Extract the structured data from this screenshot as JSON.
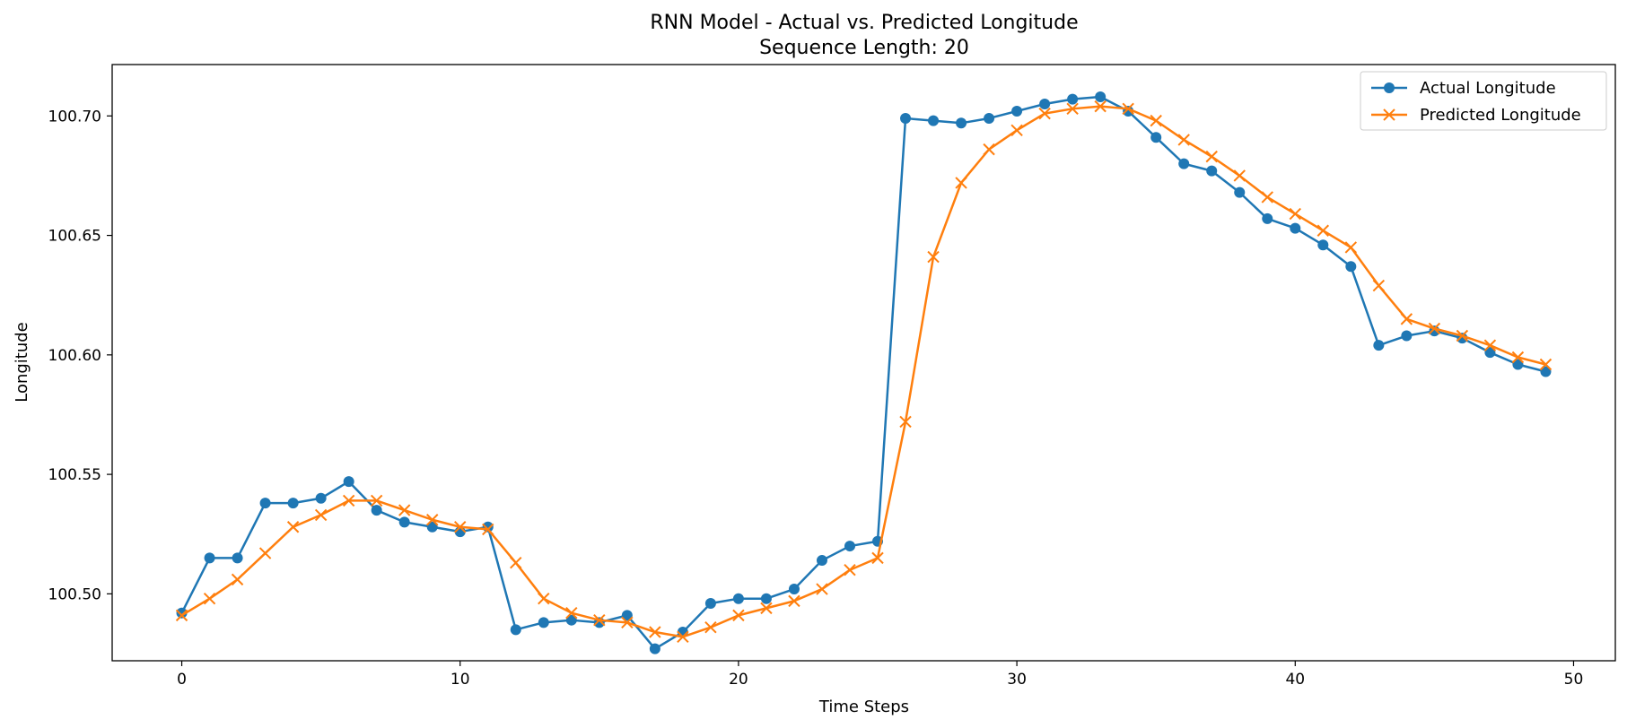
{
  "chart_data": {
    "type": "line",
    "title": "RNN Model - Actual vs. Predicted Longitude",
    "subtitle": "Sequence Length: 20",
    "xlabel": "Time Steps",
    "ylabel": "Longitude",
    "xlim": [
      -2.5,
      51.5
    ],
    "ylim": [
      100.472,
      100.7215
    ],
    "xticks": [
      0,
      10,
      20,
      30,
      40,
      50
    ],
    "yticks": [
      100.5,
      100.55,
      100.6,
      100.65,
      100.7
    ],
    "ytick_labels": [
      "100.50",
      "100.55",
      "100.60",
      "100.65",
      "100.70"
    ],
    "grid": false,
    "legend_position": "top-right",
    "series": [
      {
        "name": "Actual Longitude",
        "color": "#1f77b4",
        "marker": "circle",
        "values": [
          100.492,
          100.515,
          100.515,
          100.538,
          100.538,
          100.54,
          100.547,
          100.535,
          100.53,
          100.528,
          100.526,
          100.528,
          100.485,
          100.488,
          100.489,
          100.488,
          100.491,
          100.477,
          100.484,
          100.496,
          100.498,
          100.498,
          100.502,
          100.514,
          100.52,
          100.522,
          100.699,
          100.698,
          100.697,
          100.699,
          100.702,
          100.705,
          100.707,
          100.708,
          100.702,
          100.691,
          100.68,
          100.677,
          100.668,
          100.657,
          100.653,
          100.646,
          100.637,
          100.604,
          100.608,
          100.61,
          100.607,
          100.601,
          100.596,
          100.593
        ]
      },
      {
        "name": "Predicted Longitude",
        "color": "#ff7f0e",
        "marker": "x",
        "values": [
          100.491,
          100.498,
          100.506,
          100.517,
          100.528,
          100.533,
          100.539,
          100.539,
          100.535,
          100.531,
          100.528,
          100.527,
          100.513,
          100.498,
          100.492,
          100.489,
          100.488,
          100.484,
          100.482,
          100.486,
          100.491,
          100.494,
          100.497,
          100.502,
          100.51,
          100.515,
          100.572,
          100.641,
          100.672,
          100.686,
          100.694,
          100.701,
          100.703,
          100.704,
          100.703,
          100.698,
          100.69,
          100.683,
          100.675,
          100.666,
          100.659,
          100.652,
          100.645,
          100.629,
          100.615,
          100.611,
          100.608,
          100.604,
          100.599,
          100.596
        ]
      }
    ]
  }
}
